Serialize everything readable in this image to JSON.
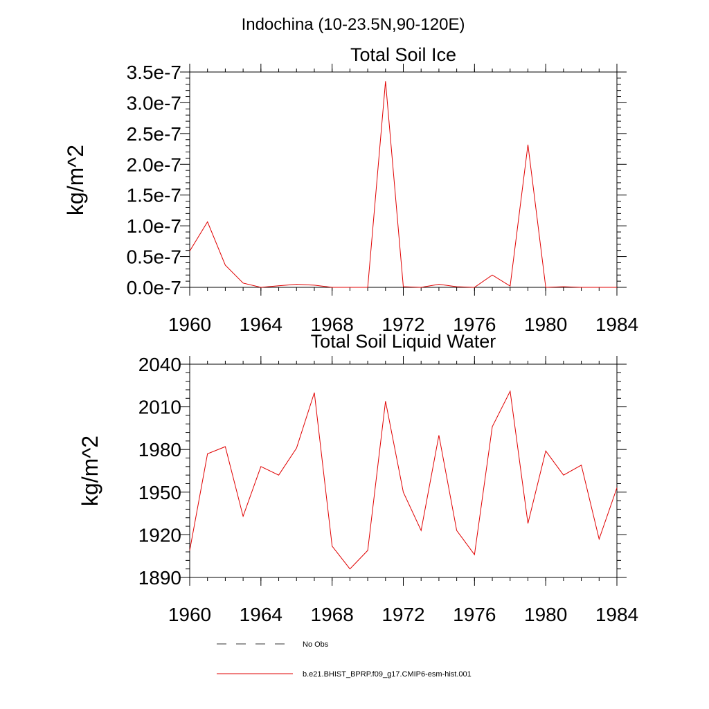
{
  "main_title": "Indochina (10-23.5N,90-120E)",
  "chart_data": [
    {
      "type": "line",
      "title": "Total Soil Ice",
      "xlabel": "",
      "ylabel": "kg/m^2",
      "xlim": [
        1960,
        1984
      ],
      "ylim": [
        0,
        3.5e-07
      ],
      "x_ticks": [
        1960,
        1964,
        1968,
        1972,
        1976,
        1980,
        1984
      ],
      "x_tick_labels": [
        "1960",
        "1964",
        "1968",
        "1972",
        "1976",
        "1980",
        "1984"
      ],
      "y_ticks": [
        0,
        5e-08,
        1e-07,
        1.5e-07,
        2e-07,
        2.5e-07,
        3e-07,
        3.5e-07
      ],
      "y_tick_labels": [
        "0.0e-7",
        "0.5e-7",
        "1.0e-7",
        "1.5e-7",
        "2.0e-7",
        "2.5e-7",
        "3.0e-7",
        "3.5e-7"
      ],
      "grid": false,
      "series": [
        {
          "name": "b.e21.BHIST_BPRP.f09_g17.CMIP6-esm-hist.001",
          "color": "#e00000",
          "x": [
            1960,
            1961,
            1962,
            1963,
            1964,
            1965,
            1966,
            1967,
            1968,
            1969,
            1970,
            1971,
            1972,
            1973,
            1974,
            1975,
            1976,
            1977,
            1978,
            1979,
            1980,
            1981,
            1982,
            1983,
            1984
          ],
          "y": [
            5.9e-08,
            1.065e-07,
            3.6e-08,
            7e-09,
            0,
            2.5e-09,
            5e-09,
            3.5e-09,
            0,
            0,
            0,
            3.35e-07,
            1e-09,
            0,
            5e-09,
            1e-09,
            0,
            2e-08,
            2e-09,
            2.32e-07,
            0,
            1e-09,
            0,
            0,
            0
          ]
        }
      ]
    },
    {
      "type": "line",
      "title": "Total Soil Liquid Water",
      "xlabel": "",
      "ylabel": "kg/m^2",
      "xlim": [
        1960,
        1984
      ],
      "ylim": [
        1890,
        2040
      ],
      "x_ticks": [
        1960,
        1964,
        1968,
        1972,
        1976,
        1980,
        1984
      ],
      "x_tick_labels": [
        "1960",
        "1964",
        "1968",
        "1972",
        "1976",
        "1980",
        "1984"
      ],
      "y_ticks": [
        1890,
        1920,
        1950,
        1980,
        2010,
        2040
      ],
      "y_tick_labels": [
        "1890",
        "1920",
        "1950",
        "1980",
        "2010",
        "2040"
      ],
      "grid": false,
      "series": [
        {
          "name": "b.e21.BHIST_BPRP.f09_g17.CMIP6-esm-hist.001",
          "color": "#e00000",
          "x": [
            1960,
            1961,
            1962,
            1963,
            1964,
            1965,
            1966,
            1967,
            1968,
            1969,
            1970,
            1971,
            1972,
            1973,
            1974,
            1975,
            1976,
            1977,
            1978,
            1979,
            1980,
            1981,
            1982,
            1983,
            1984
          ],
          "y": [
            1909,
            1977,
            1982,
            1933,
            1968,
            1962,
            1981,
            2020,
            1912,
            1896,
            1909,
            2014,
            1950,
            1923,
            1990,
            1923,
            1906,
            1996,
            2021,
            1928,
            1979,
            1962,
            1969,
            1917,
            1953
          ]
        }
      ]
    }
  ],
  "legend": {
    "placement": "bottom-center",
    "entries": [
      {
        "label": "No Obs",
        "style": "dashed",
        "color": "#333333"
      },
      {
        "label": "b.e21.BHIST_BPRP.f09_g17.CMIP6-esm-hist.001",
        "style": "solid",
        "color": "#e00000"
      }
    ]
  }
}
